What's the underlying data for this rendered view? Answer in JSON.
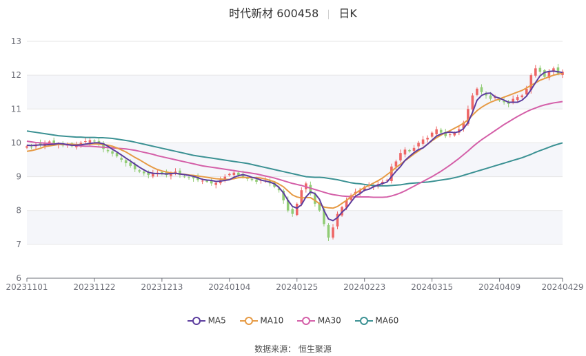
{
  "header": {
    "title": "时代新材 600458",
    "period": "日K"
  },
  "source_text": "数据来源：  恒生聚源",
  "colors": {
    "up": "#ee6666",
    "down": "#91cc75",
    "MA5": "#5c3d9e",
    "MA10": "#e69a44",
    "MA30": "#d45fa8",
    "MA60": "#3b9193"
  },
  "chart_data": {
    "type": "candlestick",
    "title": "时代新材 600458",
    "ylim": [
      6,
      13
    ],
    "y_ticks": [
      "6",
      "7",
      "8",
      "9",
      "10",
      "11",
      "12",
      "13"
    ],
    "x_tick_labels": [
      "20231101",
      "20231122",
      "20231213",
      "20240104",
      "20240125",
      "20240223",
      "20240315",
      "20240409",
      "20240429"
    ],
    "x_tick_indices": [
      0,
      15,
      30,
      45,
      60,
      75,
      90,
      105,
      119
    ],
    "grid": true,
    "legend_position": "bottom",
    "legend": [
      "MA5",
      "MA10",
      "MA30",
      "MA60"
    ],
    "close": [
      9.9,
      9.88,
      9.95,
      9.93,
      10.0,
      10.04,
      9.98,
      9.96,
      9.92,
      9.94,
      9.9,
      9.95,
      10.0,
      10.05,
      10.08,
      10.04,
      9.95,
      9.82,
      9.75,
      9.68,
      9.6,
      9.5,
      9.4,
      9.32,
      9.22,
      9.15,
      9.1,
      9.05,
      9.1,
      9.12,
      9.08,
      9.05,
      9.1,
      9.15,
      9.05,
      9.0,
      8.98,
      8.95,
      8.9,
      8.88,
      8.85,
      8.8,
      8.82,
      8.9,
      9.0,
      9.08,
      9.12,
      9.05,
      9.0,
      8.95,
      8.9,
      8.85,
      8.9,
      8.88,
      8.8,
      8.7,
      8.6,
      8.3,
      8.0,
      7.9,
      8.2,
      8.6,
      8.8,
      8.5,
      8.2,
      8.0,
      7.6,
      7.2,
      7.5,
      7.9,
      8.1,
      8.3,
      8.45,
      8.55,
      8.6,
      8.7,
      8.75,
      8.72,
      8.78,
      8.85,
      8.9,
      9.3,
      9.45,
      9.7,
      9.8,
      9.75,
      9.85,
      10.0,
      10.1,
      10.15,
      10.3,
      10.4,
      10.3,
      10.2,
      10.25,
      10.3,
      10.4,
      10.6,
      11.0,
      11.4,
      11.6,
      11.5,
      11.4,
      11.3,
      11.35,
      11.25,
      11.2,
      11.15,
      11.3,
      11.35,
      11.4,
      11.6,
      12.0,
      12.2,
      12.1,
      11.95,
      12.1,
      12.2,
      12.05,
      12.1
    ],
    "ma5": [
      9.93,
      9.92,
      9.93,
      9.94,
      9.94,
      9.95,
      9.96,
      9.98,
      9.97,
      9.95,
      9.93,
      9.93,
      9.94,
      9.96,
      9.98,
      10.0,
      10.0,
      9.97,
      9.9,
      9.81,
      9.73,
      9.64,
      9.55,
      9.46,
      9.37,
      9.28,
      9.2,
      9.13,
      9.1,
      9.09,
      9.09,
      9.08,
      9.09,
      9.1,
      9.08,
      9.06,
      9.04,
      9.01,
      8.97,
      8.92,
      8.9,
      8.89,
      8.86,
      8.87,
      8.89,
      8.91,
      8.98,
      9.03,
      9.06,
      9.03,
      8.98,
      8.95,
      8.9,
      8.87,
      8.84,
      8.79,
      8.68,
      8.52,
      8.3,
      8.12,
      8.07,
      8.17,
      8.4,
      8.55,
      8.5,
      8.33,
      8.0,
      7.75,
      7.7,
      7.79,
      7.95,
      8.07,
      8.25,
      8.42,
      8.5,
      8.6,
      8.63,
      8.7,
      8.75,
      8.8,
      8.84,
      9.0,
      9.16,
      9.3,
      9.48,
      9.6,
      9.71,
      9.8,
      9.85,
      9.96,
      10.08,
      10.2,
      10.26,
      10.3,
      10.32,
      10.3,
      10.33,
      10.42,
      10.6,
      10.9,
      11.26,
      11.4,
      11.46,
      11.47,
      11.36,
      11.32,
      11.26,
      11.2,
      11.2,
      11.2,
      11.26,
      11.38,
      11.57,
      11.78,
      11.98,
      12.08,
      12.11,
      12.12,
      12.1,
      12.08
    ],
    "ma10": [
      9.75,
      9.77,
      9.8,
      9.84,
      9.89,
      9.91,
      9.93,
      9.95,
      9.95,
      9.96,
      9.96,
      9.95,
      9.95,
      9.96,
      9.96,
      9.97,
      9.96,
      9.95,
      9.93,
      9.9,
      9.85,
      9.79,
      9.73,
      9.65,
      9.57,
      9.5,
      9.42,
      9.34,
      9.27,
      9.21,
      9.17,
      9.14,
      9.11,
      9.1,
      9.08,
      9.07,
      9.05,
      9.04,
      9.02,
      9.0,
      8.98,
      8.96,
      8.94,
      8.93,
      8.92,
      8.92,
      8.94,
      8.97,
      8.98,
      8.97,
      8.97,
      8.97,
      8.96,
      8.93,
      8.89,
      8.85,
      8.78,
      8.7,
      8.58,
      8.46,
      8.4,
      8.37,
      8.38,
      8.38,
      8.3,
      8.2,
      8.1,
      8.08,
      8.07,
      8.12,
      8.21,
      8.3,
      8.41,
      8.51,
      8.6,
      8.68,
      8.74,
      8.81,
      8.88,
      8.96,
      9.06,
      9.16,
      9.27,
      9.37,
      9.47,
      9.57,
      9.67,
      9.76,
      9.86,
      9.96,
      10.06,
      10.15,
      10.23,
      10.3,
      10.36,
      10.43,
      10.5,
      10.58,
      10.68,
      10.82,
      10.95,
      11.05,
      11.13,
      11.2,
      11.25,
      11.3,
      11.35,
      11.4,
      11.45,
      11.5,
      11.55,
      11.62,
      11.7,
      11.77,
      11.85,
      11.9,
      11.95,
      12.0,
      12.03,
      12.05
    ],
    "ma30": [
      10.05,
      10.03,
      10.01,
      10.0,
      9.99,
      9.98,
      9.97,
      9.96,
      9.95,
      9.94,
      9.93,
      9.92,
      9.91,
      9.9,
      9.9,
      9.89,
      9.88,
      9.87,
      9.86,
      9.85,
      9.84,
      9.83,
      9.82,
      9.8,
      9.78,
      9.75,
      9.72,
      9.69,
      9.66,
      9.62,
      9.59,
      9.56,
      9.53,
      9.5,
      9.47,
      9.44,
      9.41,
      9.38,
      9.35,
      9.32,
      9.3,
      9.28,
      9.26,
      9.24,
      9.22,
      9.2,
      9.18,
      9.16,
      9.14,
      9.12,
      9.1,
      9.08,
      9.05,
      9.02,
      8.99,
      8.96,
      8.92,
      8.88,
      8.84,
      8.8,
      8.77,
      8.74,
      8.7,
      8.66,
      8.62,
      8.58,
      8.54,
      8.5,
      8.47,
      8.45,
      8.43,
      8.42,
      8.41,
      8.4,
      8.4,
      8.4,
      8.4,
      8.39,
      8.39,
      8.39,
      8.4,
      8.43,
      8.47,
      8.52,
      8.58,
      8.65,
      8.72,
      8.79,
      8.86,
      8.93,
      9.0,
      9.08,
      9.16,
      9.25,
      9.34,
      9.44,
      9.54,
      9.65,
      9.76,
      9.88,
      9.99,
      10.09,
      10.18,
      10.27,
      10.36,
      10.45,
      10.54,
      10.62,
      10.7,
      10.78,
      10.85,
      10.92,
      10.98,
      11.03,
      11.08,
      11.12,
      11.15,
      11.18,
      11.2,
      11.22
    ],
    "ma60": [
      10.35,
      10.33,
      10.31,
      10.29,
      10.27,
      10.25,
      10.23,
      10.21,
      10.2,
      10.19,
      10.18,
      10.17,
      10.17,
      10.16,
      10.16,
      10.16,
      10.15,
      10.15,
      10.14,
      10.13,
      10.11,
      10.09,
      10.07,
      10.05,
      10.02,
      9.99,
      9.96,
      9.93,
      9.9,
      9.87,
      9.84,
      9.81,
      9.78,
      9.75,
      9.72,
      9.69,
      9.66,
      9.63,
      9.61,
      9.59,
      9.57,
      9.55,
      9.53,
      9.51,
      9.49,
      9.47,
      9.45,
      9.43,
      9.41,
      9.39,
      9.36,
      9.33,
      9.3,
      9.27,
      9.24,
      9.21,
      9.18,
      9.15,
      9.12,
      9.09,
      9.06,
      9.03,
      9.0,
      8.99,
      8.98,
      8.98,
      8.97,
      8.95,
      8.93,
      8.91,
      8.88,
      8.85,
      8.82,
      8.8,
      8.79,
      8.77,
      8.75,
      8.74,
      8.73,
      8.73,
      8.73,
      8.74,
      8.75,
      8.76,
      8.78,
      8.8,
      8.81,
      8.82,
      8.83,
      8.84,
      8.86,
      8.88,
      8.9,
      8.92,
      8.94,
      8.97,
      9.0,
      9.04,
      9.08,
      9.12,
      9.16,
      9.2,
      9.24,
      9.28,
      9.32,
      9.36,
      9.4,
      9.44,
      9.48,
      9.52,
      9.56,
      9.61,
      9.66,
      9.72,
      9.77,
      9.82,
      9.87,
      9.92,
      9.96,
      10.0
    ]
  }
}
